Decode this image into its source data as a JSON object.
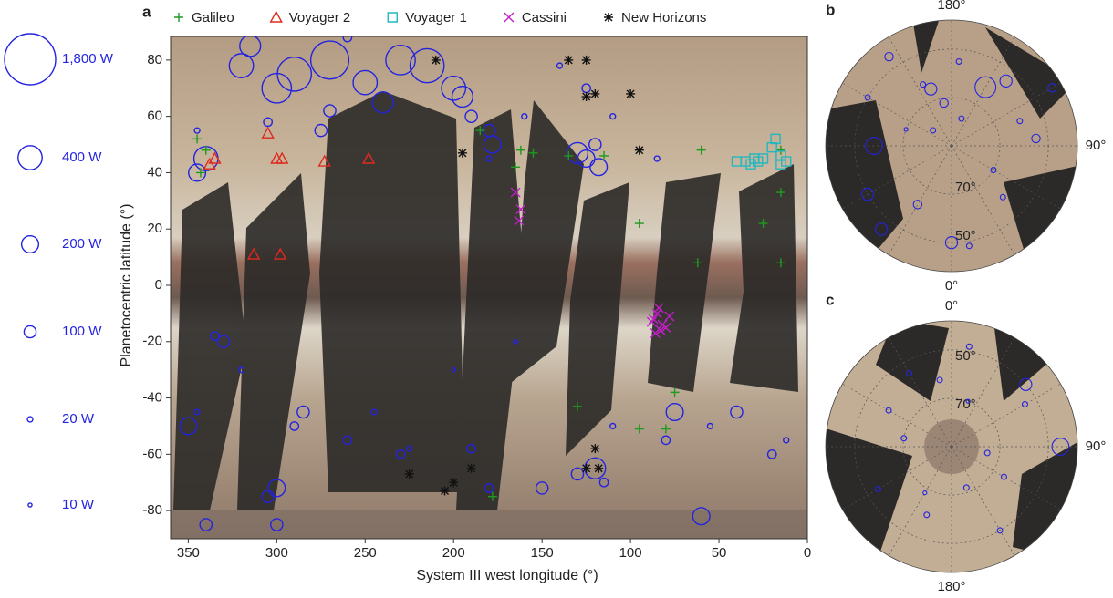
{
  "chart_data": [
    {
      "type": "scatter",
      "panel": "a",
      "xlabel": "System III west longitude (°)",
      "ylabel": "Planetocentric latitude (°)",
      "xlim": [
        360,
        0
      ],
      "ylim": [
        -90,
        90
      ],
      "xticks": [
        350,
        300,
        250,
        200,
        150,
        100,
        50,
        0
      ],
      "yticks": [
        -80,
        -60,
        -40,
        -20,
        0,
        20,
        40,
        60,
        80
      ],
      "size_legend": [
        {
          "value": 1800,
          "label": "1,800 W"
        },
        {
          "value": 400,
          "label": "400 W"
        },
        {
          "value": 200,
          "label": "200 W"
        },
        {
          "value": 100,
          "label": "100 W"
        },
        {
          "value": 20,
          "label": "20 W"
        },
        {
          "value": 10,
          "label": "10 W"
        }
      ],
      "series": [
        {
          "color": "#2323e0",
          "marker": "circle",
          "x": [
            340,
            345,
            300,
            290,
            270,
            250,
            230,
            215,
            200,
            195,
            180,
            178,
            130,
            125,
            118,
            120,
            125,
            110,
            140,
            270,
            275,
            305,
            345,
            190,
            180,
            85,
            315,
            260,
            330,
            335,
            320,
            300,
            305,
            290,
            260,
            245,
            190,
            180,
            150,
            130,
            120,
            115,
            110,
            80,
            75,
            40,
            20,
            12,
            340,
            300,
            60,
            55,
            345,
            350,
            165,
            200,
            285,
            230,
            225,
            320,
            240,
            160
          ],
          "values": [
            45,
            40,
            70,
            75,
            80,
            72,
            80,
            78,
            70,
            67,
            55,
            50,
            47,
            45,
            42,
            50,
            70,
            60,
            78,
            62,
            55,
            58,
            55,
            60,
            45,
            45,
            85,
            88,
            -20,
            -18,
            -30,
            -72,
            -75,
            -50,
            -55,
            -45,
            -58,
            -72,
            -72,
            -67,
            -65,
            -70,
            -50,
            -55,
            -45,
            -45,
            -60,
            -55,
            -85,
            -85,
            -82,
            -50,
            -45,
            -50,
            -20,
            -30,
            -45,
            -60,
            -58,
            78,
            65,
            60
          ],
          "sizes": [
            400,
            200,
            600,
            800,
            1000,
            400,
            600,
            800,
            400,
            300,
            100,
            200,
            300,
            200,
            200,
            100,
            50,
            20,
            20,
            100,
            100,
            50,
            20,
            100,
            20,
            20,
            300,
            50,
            100,
            50,
            20,
            200,
            100,
            50,
            50,
            20,
            50,
            50,
            100,
            100,
            300,
            50,
            20,
            50,
            200,
            100,
            50,
            20,
            100,
            100,
            200,
            20,
            20,
            200,
            10,
            10,
            100,
            50,
            20,
            400,
            300,
            20
          ]
        },
        {
          "name": "Galileo",
          "color": "#1e9a1e",
          "marker": "plus",
          "x": [
            340,
            345,
            343,
            162,
            155,
            135,
            115,
            165,
            185,
            95,
            25,
            15,
            15,
            60,
            62,
            15,
            75,
            130,
            95,
            80,
            178
          ],
          "values": [
            48,
            52,
            40,
            48,
            47,
            46,
            46,
            42,
            55,
            22,
            22,
            33,
            48,
            48,
            8,
            8,
            -38,
            -43,
            -51,
            -51,
            -75
          ]
        },
        {
          "name": "Voyager 2",
          "color": "#e02a1e",
          "marker": "triangle",
          "x": [
            335,
            338,
            305,
            300,
            297,
            273,
            248,
            313,
            298
          ],
          "values": [
            45,
            43,
            54,
            45,
            45,
            44,
            45,
            11,
            11
          ]
        },
        {
          "name": "Voyager 1",
          "color": "#22b8c0",
          "marker": "square",
          "x": [
            18,
            20,
            15,
            12,
            40,
            35,
            28,
            30,
            25,
            32,
            15
          ],
          "values": [
            52,
            49,
            46,
            44,
            44,
            44,
            44,
            45,
            45,
            43,
            43
          ]
        },
        {
          "name": "Cassini",
          "color": "#c21ec8",
          "marker": "x",
          "x": [
            165,
            162,
            163,
            85,
            87,
            82,
            80,
            88,
            83,
            78,
            84,
            86
          ],
          "values": [
            33,
            27,
            23,
            -10,
            -12,
            -14,
            -15,
            -13,
            -16,
            -11,
            -8,
            -17
          ]
        },
        {
          "name": "New Horizons",
          "color": "#111111",
          "marker": "star",
          "x": [
            210,
            135,
            125,
            120,
            125,
            100,
            95,
            195,
            225,
            205,
            200,
            190,
            120,
            118,
            125
          ],
          "values": [
            80,
            80,
            80,
            68,
            67,
            68,
            48,
            47,
            -67,
            -73,
            -70,
            -65,
            -58,
            -65,
            -65
          ]
        }
      ]
    },
    {
      "type": "polar",
      "panel": "b",
      "theta_zero_location": "S",
      "theta_direction": 1,
      "rlim": [
        90,
        38
      ],
      "thetaticks": [
        {
          "value": 180,
          "label": "180°"
        },
        {
          "value": 90,
          "label": "90°"
        },
        {
          "value": 0,
          "label": "0°"
        }
      ],
      "rticks": [
        {
          "value": 70,
          "label": "70°"
        },
        {
          "value": 50,
          "label": "50°"
        }
      ],
      "series": [
        {
          "color": "#2323e0",
          "x": [
            200,
            190,
            150,
            140,
            110,
            95,
            270,
            300,
            320,
            230,
            160,
            240,
            0,
            10,
            60,
            45,
            330,
            250,
            215,
            120,
            175,
            205
          ],
          "values": [
            65,
            72,
            62,
            55,
            60,
            55,
            58,
            50,
            45,
            80,
            78,
            50,
            50,
            48,
            70,
            60,
            62,
            70,
            45,
            42,
            55,
            62
          ],
          "sizes": [
            100,
            50,
            300,
            100,
            20,
            50,
            200,
            100,
            100,
            20,
            20,
            20,
            100,
            20,
            20,
            20,
            50,
            10,
            50,
            50,
            20,
            20
          ]
        }
      ]
    },
    {
      "type": "polar",
      "panel": "c",
      "theta_zero_location": "N",
      "theta_direction": -1,
      "rlim": [
        90,
        38
      ],
      "thetaticks": [
        {
          "value": 0,
          "label": "0°"
        },
        {
          "value": 90,
          "label": "90°"
        },
        {
          "value": 180,
          "label": "180°"
        }
      ],
      "rticks": [
        {
          "value": 70,
          "label": "70°"
        },
        {
          "value": 50,
          "label": "50°"
        }
      ],
      "series": [
        {
          "color": "#2323e0",
          "x": [
            330,
            300,
            50,
            60,
            120,
            100,
            200,
            210,
            240,
            280,
            20,
            10,
            350,
            150,
            160,
            90
          ],
          "values": [
            55,
            60,
            50,
            55,
            65,
            75,
            60,
            68,
            55,
            70,
            70,
            48,
            62,
            50,
            72,
            45
          ],
          "sizes": [
            20,
            20,
            100,
            20,
            20,
            20,
            20,
            10,
            20,
            20,
            10,
            20,
            20,
            20,
            20,
            200
          ]
        }
      ]
    }
  ]
}
